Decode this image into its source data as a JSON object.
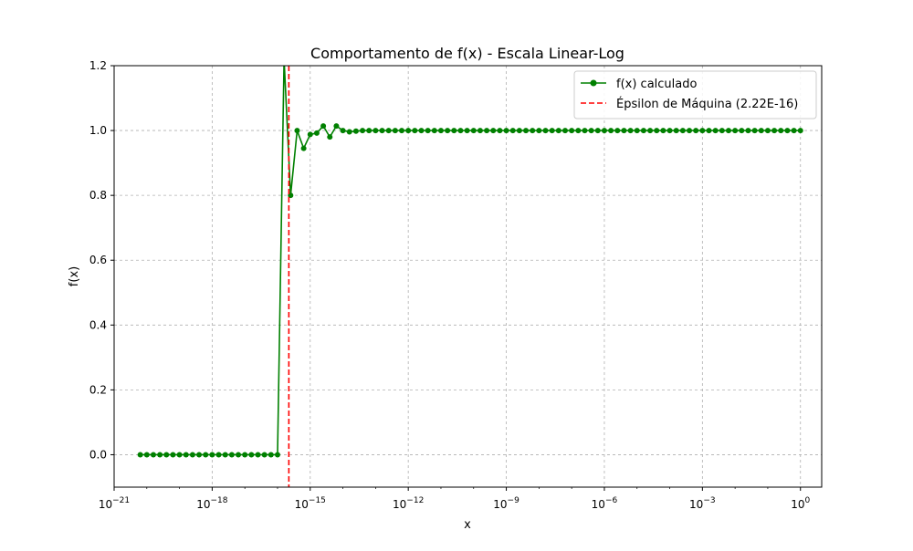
{
  "chart_data": {
    "type": "line",
    "title": "Comportamento de f(x) - Escala Linear-Log",
    "xlabel": "x",
    "ylabel": "f(x)",
    "xscale": "log",
    "x_exp_range": [
      -21,
      0.65
    ],
    "ylim": [
      -0.1,
      1.2
    ],
    "grid": true,
    "grid_style": "dashed",
    "legend_position": "top-right",
    "x_ticks": [
      {
        "exp": -21,
        "label": "10",
        "sup": "−21"
      },
      {
        "exp": -18,
        "label": "10",
        "sup": "−18"
      },
      {
        "exp": -15,
        "label": "10",
        "sup": "−15"
      },
      {
        "exp": -12,
        "label": "10",
        "sup": "−12"
      },
      {
        "exp": -9,
        "label": "10",
        "sup": "−9"
      },
      {
        "exp": -6,
        "label": "10",
        "sup": "−6"
      },
      {
        "exp": -3,
        "label": "10",
        "sup": "−3"
      },
      {
        "exp": 0,
        "label": "10",
        "sup": "0"
      }
    ],
    "y_ticks": [
      {
        "value": 0.0,
        "label": "0.0"
      },
      {
        "value": 0.2,
        "label": "0.2"
      },
      {
        "value": 0.4,
        "label": "0.4"
      },
      {
        "value": 0.6,
        "label": "0.6"
      },
      {
        "value": 0.8,
        "label": "0.8"
      },
      {
        "value": 1.0,
        "label": "1.0"
      },
      {
        "value": 1.2,
        "label": "1.2"
      }
    ],
    "series": [
      {
        "name": "f(x) calculado",
        "color": "#008000",
        "marker": "circle",
        "x_exp": [
          -20.2,
          -20.0,
          -19.8,
          -19.6,
          -19.4,
          -19.2,
          -19.0,
          -18.8,
          -18.6,
          -18.4,
          -18.2,
          -18.0,
          -17.8,
          -17.6,
          -17.4,
          -17.2,
          -17.0,
          -16.8,
          -16.6,
          -16.4,
          -16.2,
          -16.0,
          -15.8,
          -15.6,
          -15.4,
          -15.2,
          -15.0,
          -14.8,
          -14.6,
          -14.4,
          -14.2,
          -14.0,
          -13.8,
          -13.6,
          -13.4,
          -13.2,
          -13.0,
          -12.8,
          -12.6,
          -12.4,
          -12.2,
          -12.0,
          -11.8,
          -11.6,
          -11.4,
          -11.2,
          -11.0,
          -10.8,
          -10.6,
          -10.4,
          -10.2,
          -10.0,
          -9.8,
          -9.6,
          -9.4,
          -9.2,
          -9.0,
          -8.8,
          -8.6,
          -8.4,
          -8.2,
          -8.0,
          -7.8,
          -7.6,
          -7.4,
          -7.2,
          -7.0,
          -6.8,
          -6.6,
          -6.4,
          -6.2,
          -6.0,
          -5.8,
          -5.6,
          -5.4,
          -5.2,
          -5.0,
          -4.8,
          -4.6,
          -4.4,
          -4.2,
          -4.0,
          -3.8,
          -3.6,
          -3.4,
          -3.2,
          -3.0,
          -2.8,
          -2.6,
          -2.4,
          -2.2,
          -2.0,
          -1.8,
          -1.6,
          -1.4,
          -1.2,
          -1.0,
          -0.8,
          -0.6,
          -0.4,
          -0.2,
          0.0
        ],
        "y": [
          0,
          0,
          0,
          0,
          0,
          0,
          0,
          0,
          0,
          0,
          0,
          0,
          0,
          0,
          0,
          0,
          0,
          0,
          0,
          0,
          0,
          0,
          1.22,
          0.8,
          1.0,
          0.945,
          0.988,
          0.992,
          1.014,
          0.98,
          1.014,
          1.0,
          0.996,
          0.998,
          1.0,
          1.0,
          1.0,
          1.0,
          1.0,
          1.0,
          1.0,
          1.0,
          1.0,
          1.0,
          1.0,
          1.0,
          1.0,
          1.0,
          1.0,
          1.0,
          1.0,
          1.0,
          1.0,
          1.0,
          1.0,
          1.0,
          1.0,
          1.0,
          1.0,
          1.0,
          1.0,
          1.0,
          1.0,
          1.0,
          1.0,
          1.0,
          1.0,
          1.0,
          1.0,
          1.0,
          1.0,
          1.0,
          1.0,
          1.0,
          1.0,
          1.0,
          1.0,
          1.0,
          1.0,
          1.0,
          1.0,
          1.0,
          1.0,
          1.0,
          1.0,
          1.0,
          1.0,
          1.0,
          1.0,
          1.0,
          1.0,
          1.0,
          1.0,
          1.0,
          1.0,
          1.0,
          1.0,
          1.0,
          1.0,
          1.0,
          1.0,
          1.0
        ]
      }
    ],
    "vline": {
      "name": "Épsilon de Máquina (2.22E-16)",
      "x": 2.22e-16,
      "color": "#ff0000",
      "style": "dashed"
    }
  }
}
